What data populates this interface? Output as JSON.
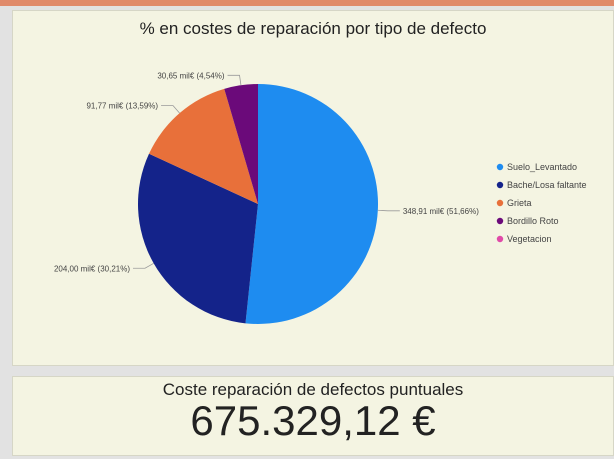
{
  "chart_data": {
    "type": "pie",
    "title": "% en costes de reparación por tipo de defecto",
    "slices": [
      {
        "name": "Suelo_Levantado",
        "value": 348.91,
        "percent": 51.66,
        "label": "348,91 mil€ (51,66%)",
        "color": "#1e8cf0"
      },
      {
        "name": "Bache/Losa faltante",
        "value": 204.0,
        "percent": 30.21,
        "label": "204,00 mil€ (30,21%)",
        "color": "#14238a"
      },
      {
        "name": "Grieta",
        "value": 91.77,
        "percent": 13.59,
        "label": "91,77 mil€ (13,59%)",
        "color": "#e8703a"
      },
      {
        "name": "Bordillo Roto",
        "value": 30.65,
        "percent": 4.54,
        "label": "30,65 mil€ (4,54%)",
        "color": "#6b0a7a"
      },
      {
        "name": "Vegetacion",
        "value": 0,
        "percent": 0,
        "label": "",
        "color": "#e04aa8"
      }
    ],
    "legend": "right"
  },
  "kpi": {
    "label": "Coste reparación de defectos puntuales",
    "value": "675.329,12 €"
  }
}
